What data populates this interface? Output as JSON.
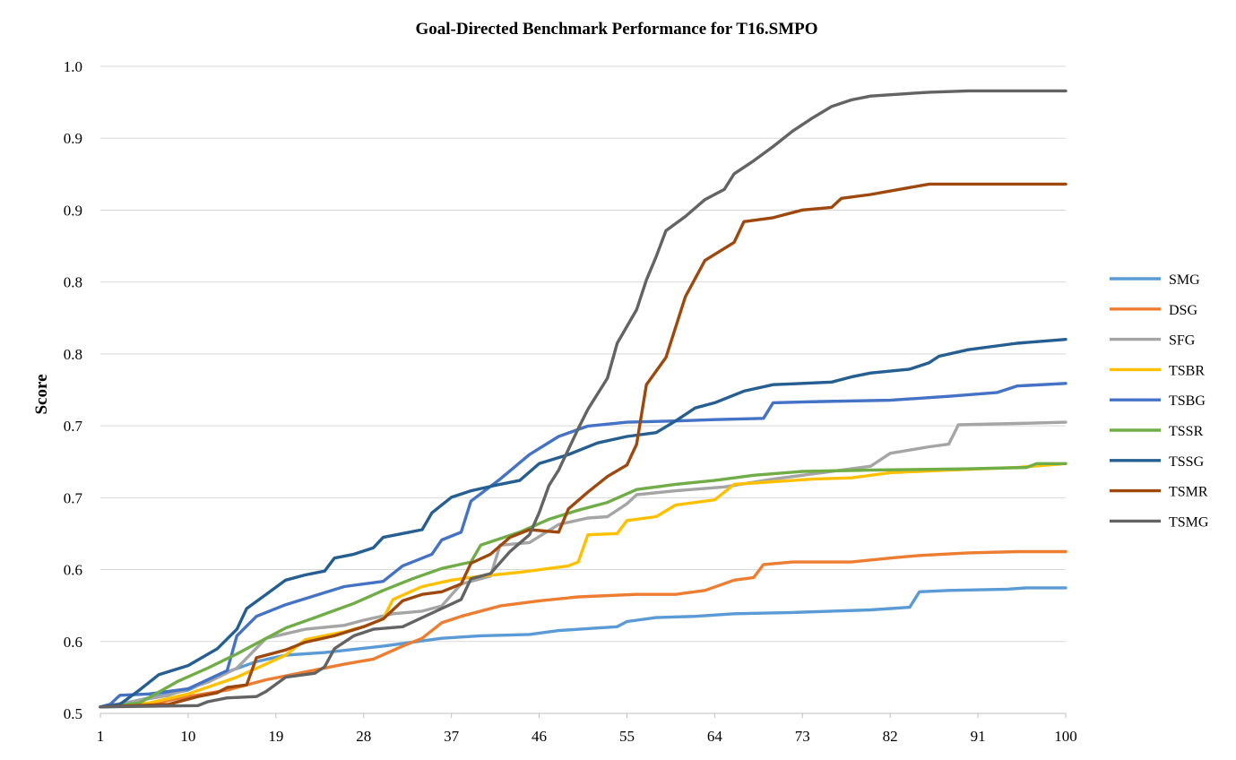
{
  "chart_data": {
    "type": "line",
    "title": "Goal-Directed Benchmark Performance for T16.SMPO",
    "xlabel": "",
    "ylabel": "Score",
    "x_tick_labels": [
      "1",
      "10",
      "19",
      "28",
      "37",
      "46",
      "55",
      "64",
      "73",
      "82",
      "91",
      "100"
    ],
    "y_tick_labels": [
      "0.5",
      "0.6",
      "0.6",
      "0.7",
      "0.7",
      "0.8",
      "0.8",
      "0.9",
      "0.9",
      "1.0"
    ],
    "ylim": [
      0.5,
      1.0
    ],
    "xlim": [
      1,
      100
    ],
    "grid": true,
    "legend": "right",
    "colors": {
      "SMG": "#5b9bd5",
      "DSG": "#ed7d31",
      "SFG": "#a5a5a5",
      "TSBR": "#ffc000",
      "TSBG": "#4472c4",
      "TSSR": "#70ad47",
      "TSSG": "#255e91",
      "TSMR": "#9e480e",
      "TSMG": "#636363"
    },
    "series": [
      {
        "name": "SMG",
        "points": [
          [
            1,
            0.505
          ],
          [
            3,
            0.507
          ],
          [
            6,
            0.512
          ],
          [
            10,
            0.518
          ],
          [
            14,
            0.532
          ],
          [
            17,
            0.54
          ],
          [
            20,
            0.545
          ],
          [
            24,
            0.547
          ],
          [
            30,
            0.552
          ],
          [
            36,
            0.558
          ],
          [
            40,
            0.56
          ],
          [
            45,
            0.561
          ],
          [
            48,
            0.564
          ],
          [
            52,
            0.566
          ],
          [
            54,
            0.567
          ],
          [
            55,
            0.571
          ],
          [
            58,
            0.574
          ],
          [
            62,
            0.575
          ],
          [
            66,
            0.577
          ],
          [
            72,
            0.578
          ],
          [
            76,
            0.579
          ],
          [
            80,
            0.58
          ],
          [
            84,
            0.582
          ],
          [
            85,
            0.594
          ],
          [
            88,
            0.595
          ],
          [
            94,
            0.596
          ],
          [
            96,
            0.597
          ],
          [
            100,
            0.597
          ]
        ]
      },
      {
        "name": "DSG",
        "points": [
          [
            1,
            0.505
          ],
          [
            6,
            0.507
          ],
          [
            10,
            0.513
          ],
          [
            14,
            0.518
          ],
          [
            18,
            0.526
          ],
          [
            22,
            0.532
          ],
          [
            26,
            0.538
          ],
          [
            29,
            0.542
          ],
          [
            32,
            0.552
          ],
          [
            34,
            0.558
          ],
          [
            36,
            0.57
          ],
          [
            38,
            0.575
          ],
          [
            42,
            0.583
          ],
          [
            46,
            0.587
          ],
          [
            50,
            0.59
          ],
          [
            56,
            0.592
          ],
          [
            60,
            0.592
          ],
          [
            63,
            0.595
          ],
          [
            66,
            0.603
          ],
          [
            68,
            0.605
          ],
          [
            69,
            0.615
          ],
          [
            72,
            0.617
          ],
          [
            78,
            0.617
          ],
          [
            82,
            0.62
          ],
          [
            85,
            0.622
          ],
          [
            90,
            0.624
          ],
          [
            95,
            0.625
          ],
          [
            100,
            0.625
          ]
        ]
      },
      {
        "name": "SFG",
        "points": [
          [
            1,
            0.505
          ],
          [
            8,
            0.514
          ],
          [
            12,
            0.524
          ],
          [
            15,
            0.535
          ],
          [
            18,
            0.558
          ],
          [
            22,
            0.565
          ],
          [
            26,
            0.568
          ],
          [
            28,
            0.572
          ],
          [
            31,
            0.577
          ],
          [
            34,
            0.579
          ],
          [
            36,
            0.583
          ],
          [
            38,
            0.6
          ],
          [
            41,
            0.606
          ],
          [
            42,
            0.63
          ],
          [
            45,
            0.632
          ],
          [
            48,
            0.646
          ],
          [
            51,
            0.651
          ],
          [
            53,
            0.652
          ],
          [
            55,
            0.662
          ],
          [
            56,
            0.669
          ],
          [
            60,
            0.672
          ],
          [
            65,
            0.675
          ],
          [
            70,
            0.681
          ],
          [
            75,
            0.686
          ],
          [
            80,
            0.691
          ],
          [
            82,
            0.701
          ],
          [
            86,
            0.706
          ],
          [
            88,
            0.708
          ],
          [
            89,
            0.723
          ],
          [
            95,
            0.724
          ],
          [
            100,
            0.725
          ]
        ]
      },
      {
        "name": "TSBR",
        "points": [
          [
            1,
            0.505
          ],
          [
            6,
            0.508
          ],
          [
            10,
            0.515
          ],
          [
            15,
            0.528
          ],
          [
            20,
            0.545
          ],
          [
            22,
            0.557
          ],
          [
            26,
            0.563
          ],
          [
            28,
            0.567
          ],
          [
            30,
            0.573
          ],
          [
            31,
            0.588
          ],
          [
            34,
            0.598
          ],
          [
            37,
            0.603
          ],
          [
            40,
            0.606
          ],
          [
            44,
            0.609
          ],
          [
            49,
            0.614
          ],
          [
            50,
            0.617
          ],
          [
            51,
            0.638
          ],
          [
            54,
            0.639
          ],
          [
            55,
            0.649
          ],
          [
            58,
            0.652
          ],
          [
            60,
            0.661
          ],
          [
            64,
            0.665
          ],
          [
            66,
            0.677
          ],
          [
            70,
            0.679
          ],
          [
            74,
            0.681
          ],
          [
            78,
            0.682
          ],
          [
            82,
            0.686
          ],
          [
            88,
            0.688
          ],
          [
            95,
            0.69
          ],
          [
            100,
            0.693
          ]
        ]
      },
      {
        "name": "TSBG",
        "points": [
          [
            1,
            0.505
          ],
          [
            2,
            0.507
          ],
          [
            3,
            0.514
          ],
          [
            6,
            0.515
          ],
          [
            10,
            0.519
          ],
          [
            14,
            0.533
          ],
          [
            15,
            0.56
          ],
          [
            17,
            0.575
          ],
          [
            20,
            0.584
          ],
          [
            23,
            0.591
          ],
          [
            26,
            0.598
          ],
          [
            30,
            0.602
          ],
          [
            32,
            0.614
          ],
          [
            35,
            0.623
          ],
          [
            36,
            0.634
          ],
          [
            38,
            0.64
          ],
          [
            39,
            0.664
          ],
          [
            42,
            0.681
          ],
          [
            45,
            0.7
          ],
          [
            48,
            0.714
          ],
          [
            51,
            0.722
          ],
          [
            55,
            0.725
          ],
          [
            60,
            0.726
          ],
          [
            64,
            0.727
          ],
          [
            69,
            0.728
          ],
          [
            70,
            0.74
          ],
          [
            75,
            0.741
          ],
          [
            82,
            0.742
          ],
          [
            84,
            0.743
          ],
          [
            88,
            0.745
          ],
          [
            93,
            0.748
          ],
          [
            95,
            0.753
          ],
          [
            100,
            0.755
          ]
        ]
      },
      {
        "name": "TSSR",
        "points": [
          [
            1,
            0.505
          ],
          [
            5,
            0.508
          ],
          [
            9,
            0.525
          ],
          [
            12,
            0.535
          ],
          [
            15,
            0.546
          ],
          [
            18,
            0.558
          ],
          [
            20,
            0.566
          ],
          [
            23,
            0.574
          ],
          [
            27,
            0.585
          ],
          [
            30,
            0.595
          ],
          [
            33,
            0.604
          ],
          [
            36,
            0.612
          ],
          [
            39,
            0.617
          ],
          [
            40,
            0.63
          ],
          [
            44,
            0.64
          ],
          [
            47,
            0.65
          ],
          [
            50,
            0.657
          ],
          [
            53,
            0.663
          ],
          [
            56,
            0.673
          ],
          [
            60,
            0.677
          ],
          [
            64,
            0.68
          ],
          [
            68,
            0.684
          ],
          [
            73,
            0.687
          ],
          [
            80,
            0.688
          ],
          [
            90,
            0.689
          ],
          [
            96,
            0.69
          ],
          [
            97,
            0.693
          ],
          [
            100,
            0.693
          ]
        ]
      },
      {
        "name": "TSSG",
        "points": [
          [
            1,
            0.505
          ],
          [
            3,
            0.507
          ],
          [
            5,
            0.518
          ],
          [
            7,
            0.53
          ],
          [
            10,
            0.537
          ],
          [
            13,
            0.55
          ],
          [
            15,
            0.565
          ],
          [
            16,
            0.581
          ],
          [
            18,
            0.592
          ],
          [
            20,
            0.603
          ],
          [
            22,
            0.607
          ],
          [
            24,
            0.61
          ],
          [
            25,
            0.62
          ],
          [
            27,
            0.623
          ],
          [
            29,
            0.628
          ],
          [
            30,
            0.636
          ],
          [
            32,
            0.639
          ],
          [
            34,
            0.642
          ],
          [
            35,
            0.655
          ],
          [
            37,
            0.667
          ],
          [
            39,
            0.672
          ],
          [
            42,
            0.677
          ],
          [
            44,
            0.68
          ],
          [
            46,
            0.693
          ],
          [
            49,
            0.7
          ],
          [
            52,
            0.709
          ],
          [
            55,
            0.714
          ],
          [
            58,
            0.717
          ],
          [
            60,
            0.726
          ],
          [
            62,
            0.736
          ],
          [
            64,
            0.74
          ],
          [
            67,
            0.749
          ],
          [
            70,
            0.754
          ],
          [
            73,
            0.755
          ],
          [
            76,
            0.756
          ],
          [
            78,
            0.76
          ],
          [
            80,
            0.763
          ],
          [
            84,
            0.766
          ],
          [
            86,
            0.771
          ],
          [
            87,
            0.776
          ],
          [
            90,
            0.781
          ],
          [
            95,
            0.786
          ],
          [
            100,
            0.789
          ]
        ]
      },
      {
        "name": "TSMR",
        "points": [
          [
            1,
            0.505
          ],
          [
            8,
            0.507
          ],
          [
            11,
            0.513
          ],
          [
            13,
            0.516
          ],
          [
            14,
            0.52
          ],
          [
            16,
            0.522
          ],
          [
            17,
            0.543
          ],
          [
            20,
            0.549
          ],
          [
            22,
            0.555
          ],
          [
            25,
            0.56
          ],
          [
            28,
            0.567
          ],
          [
            30,
            0.573
          ],
          [
            32,
            0.587
          ],
          [
            34,
            0.592
          ],
          [
            36,
            0.594
          ],
          [
            38,
            0.6
          ],
          [
            39,
            0.616
          ],
          [
            41,
            0.623
          ],
          [
            43,
            0.636
          ],
          [
            45,
            0.642
          ],
          [
            48,
            0.64
          ],
          [
            49,
            0.658
          ],
          [
            51,
            0.671
          ],
          [
            53,
            0.683
          ],
          [
            55,
            0.692
          ],
          [
            56,
            0.708
          ],
          [
            57,
            0.754
          ],
          [
            59,
            0.775
          ],
          [
            61,
            0.822
          ],
          [
            63,
            0.85
          ],
          [
            66,
            0.864
          ],
          [
            67,
            0.88
          ],
          [
            70,
            0.883
          ],
          [
            73,
            0.889
          ],
          [
            76,
            0.891
          ],
          [
            77,
            0.898
          ],
          [
            80,
            0.901
          ],
          [
            83,
            0.905
          ],
          [
            86,
            0.909
          ],
          [
            90,
            0.909
          ],
          [
            100,
            0.909
          ]
        ]
      },
      {
        "name": "TSMG",
        "points": [
          [
            1,
            0.505
          ],
          [
            11,
            0.506
          ],
          [
            12,
            0.509
          ],
          [
            14,
            0.512
          ],
          [
            17,
            0.513
          ],
          [
            18,
            0.517
          ],
          [
            20,
            0.528
          ],
          [
            23,
            0.531
          ],
          [
            24,
            0.536
          ],
          [
            25,
            0.55
          ],
          [
            27,
            0.56
          ],
          [
            29,
            0.565
          ],
          [
            32,
            0.567
          ],
          [
            36,
            0.581
          ],
          [
            38,
            0.588
          ],
          [
            39,
            0.604
          ],
          [
            41,
            0.608
          ],
          [
            43,
            0.625
          ],
          [
            45,
            0.638
          ],
          [
            46,
            0.655
          ],
          [
            47,
            0.676
          ],
          [
            48,
            0.688
          ],
          [
            50,
            0.72
          ],
          [
            51,
            0.735
          ],
          [
            53,
            0.759
          ],
          [
            54,
            0.786
          ],
          [
            56,
            0.812
          ],
          [
            57,
            0.835
          ],
          [
            58,
            0.853
          ],
          [
            59,
            0.873
          ],
          [
            61,
            0.884
          ],
          [
            63,
            0.897
          ],
          [
            65,
            0.905
          ],
          [
            66,
            0.917
          ],
          [
            68,
            0.927
          ],
          [
            70,
            0.938
          ],
          [
            72,
            0.95
          ],
          [
            74,
            0.96
          ],
          [
            76,
            0.969
          ],
          [
            78,
            0.974
          ],
          [
            80,
            0.977
          ],
          [
            84,
            0.979
          ],
          [
            86,
            0.98
          ],
          [
            90,
            0.981
          ],
          [
            100,
            0.981
          ]
        ]
      }
    ]
  }
}
